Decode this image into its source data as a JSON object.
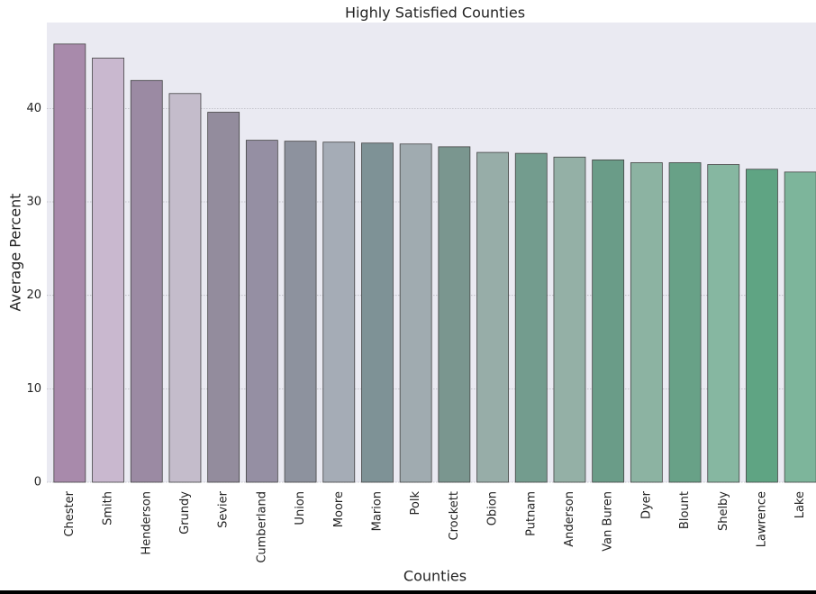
{
  "chart_data": {
    "type": "bar",
    "title": "Highly Satisfied Counties",
    "x_label": "Counties",
    "y_label": "Average Percent",
    "categories": [
      "Chester",
      "Smith",
      "Henderson",
      "Grundy",
      "Sevier",
      "Cumberland",
      "Union",
      "Moore",
      "Marion",
      "Polk",
      "Crockett",
      "Obion",
      "Putnam",
      "Anderson",
      "Van Buren",
      "Dyer",
      "Blount",
      "Shelby",
      "Lawrence",
      "Lake"
    ],
    "values": [
      46.9,
      45.4,
      43.0,
      41.6,
      39.6,
      36.6,
      36.5,
      36.4,
      36.3,
      36.2,
      35.9,
      35.3,
      35.2,
      34.8,
      34.5,
      34.2,
      34.2,
      34.0,
      33.5,
      33.2
    ],
    "colors": [
      "#a88aab",
      "#c9b8cf",
      "#9b8aa3",
      "#c4bccb",
      "#938c9d",
      "#958fa3",
      "#8d929e",
      "#a5acb6",
      "#7e9296",
      "#a0abb0",
      "#7a968f",
      "#97ada8",
      "#739c8e",
      "#94b0a6",
      "#6a9c88",
      "#8cb3a2",
      "#68a187",
      "#86b7a1",
      "#5fa483",
      "#7db59b"
    ],
    "ylim": [
      0,
      49.2
    ],
    "yticks": [
      0,
      10,
      20,
      30,
      40
    ],
    "grid": true
  }
}
